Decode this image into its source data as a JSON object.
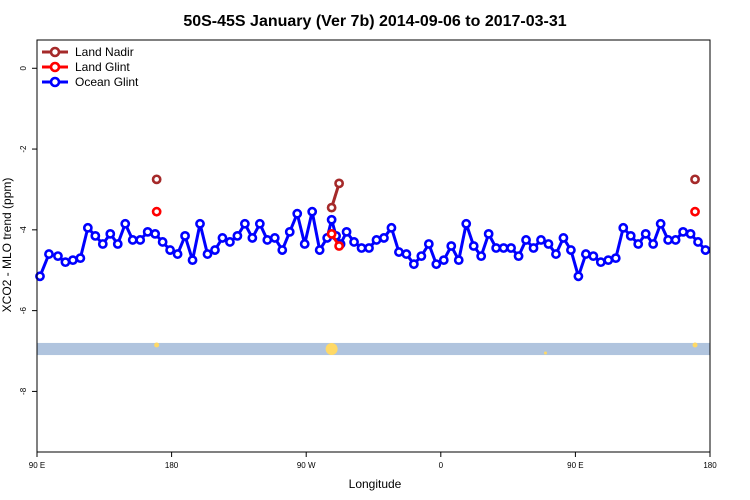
{
  "chart_data": {
    "type": "line",
    "title": "50S-45S January (Ver 7b)   2014-09-06 to 2017-03-31",
    "xlabel": "Longitude",
    "ylabel": "XCO2 - MLO trend (ppm)",
    "x_ticks": [
      {
        "value": 90,
        "label": "90 E"
      },
      {
        "value": 180,
        "label": "180"
      },
      {
        "value": 270,
        "label": "90 W"
      },
      {
        "value": 360,
        "label": "0"
      },
      {
        "value": 450,
        "label": "90 E"
      },
      {
        "value": 540,
        "label": "180"
      }
    ],
    "y_ticks": [
      {
        "value": 0,
        "label": "0"
      },
      {
        "value": -2,
        "label": "-2"
      },
      {
        "value": -4,
        "label": "-4"
      },
      {
        "value": -6,
        "label": "-6"
      },
      {
        "value": -8,
        "label": "-8"
      }
    ],
    "xlim": [
      90,
      540
    ],
    "ylim": [
      -9.5,
      0.7
    ],
    "grid": false,
    "legend_position": "top-left",
    "series": [
      {
        "name": "Land Nadir",
        "color": "#a52a2a",
        "points": [
          [
            170,
            -2.75
          ],
          [
            287,
            -3.45
          ],
          [
            292,
            -2.85
          ],
          [
            530,
            -2.75
          ]
        ]
      },
      {
        "name": "Land Glint",
        "color": "#ff0000",
        "points": [
          [
            170,
            -3.55
          ],
          [
            287,
            -4.1
          ],
          [
            292,
            -4.4
          ],
          [
            530,
            -3.55
          ]
        ]
      },
      {
        "name": "Ocean Glint",
        "color": "#0000ff",
        "points": [
          [
            92,
            -5.15
          ],
          [
            98,
            -4.6
          ],
          [
            104,
            -4.65
          ],
          [
            109,
            -4.8
          ],
          [
            114,
            -4.75
          ],
          [
            119,
            -4.7
          ],
          [
            124,
            -3.95
          ],
          [
            129,
            -4.15
          ],
          [
            134,
            -4.35
          ],
          [
            139,
            -4.1
          ],
          [
            144,
            -4.35
          ],
          [
            149,
            -3.85
          ],
          [
            154,
            -4.25
          ],
          [
            159,
            -4.25
          ],
          [
            164,
            -4.05
          ],
          [
            169,
            -4.1
          ],
          [
            174,
            -4.3
          ],
          [
            179,
            -4.5
          ],
          [
            184,
            -4.6
          ],
          [
            189,
            -4.15
          ],
          [
            194,
            -4.75
          ],
          [
            199,
            -3.85
          ],
          [
            204,
            -4.6
          ],
          [
            209,
            -4.5
          ],
          [
            214,
            -4.2
          ],
          [
            219,
            -4.3
          ],
          [
            224,
            -4.15
          ],
          [
            229,
            -3.85
          ],
          [
            234,
            -4.2
          ],
          [
            239,
            -3.85
          ],
          [
            244,
            -4.25
          ],
          [
            249,
            -4.2
          ],
          [
            254,
            -4.5
          ],
          [
            259,
            -4.05
          ],
          [
            264,
            -3.6
          ],
          [
            269,
            -4.35
          ],
          [
            274,
            -3.55
          ],
          [
            279,
            -4.5
          ],
          [
            284,
            -4.2
          ],
          [
            287,
            -3.75
          ],
          [
            290,
            -4.15
          ],
          [
            293,
            -4.35
          ],
          [
            297,
            -4.05
          ],
          [
            302,
            -4.3
          ],
          [
            307,
            -4.45
          ],
          [
            312,
            -4.45
          ],
          [
            317,
            -4.25
          ],
          [
            322,
            -4.2
          ],
          [
            327,
            -3.95
          ],
          [
            332,
            -4.55
          ],
          [
            337,
            -4.6
          ],
          [
            342,
            -4.85
          ],
          [
            347,
            -4.65
          ],
          [
            352,
            -4.35
          ],
          [
            357,
            -4.85
          ],
          [
            362,
            -4.75
          ],
          [
            367,
            -4.4
          ],
          [
            372,
            -4.75
          ],
          [
            377,
            -3.85
          ],
          [
            382,
            -4.4
          ],
          [
            387,
            -4.65
          ],
          [
            392,
            -4.1
          ],
          [
            397,
            -4.45
          ],
          [
            402,
            -4.45
          ],
          [
            407,
            -4.45
          ],
          [
            412,
            -4.65
          ],
          [
            417,
            -4.25
          ],
          [
            422,
            -4.45
          ],
          [
            427,
            -4.25
          ],
          [
            432,
            -4.35
          ],
          [
            437,
            -4.6
          ],
          [
            442,
            -4.2
          ],
          [
            447,
            -4.5
          ],
          [
            452,
            -5.15
          ],
          [
            457,
            -4.6
          ],
          [
            462,
            -4.65
          ],
          [
            467,
            -4.8
          ],
          [
            472,
            -4.75
          ],
          [
            477,
            -4.7
          ],
          [
            482,
            -3.95
          ],
          [
            487,
            -4.15
          ],
          [
            492,
            -4.35
          ],
          [
            497,
            -4.1
          ],
          [
            502,
            -4.35
          ],
          [
            507,
            -3.85
          ],
          [
            512,
            -4.25
          ],
          [
            517,
            -4.25
          ],
          [
            522,
            -4.05
          ],
          [
            527,
            -4.1
          ],
          [
            532,
            -4.3
          ],
          [
            537,
            -4.5
          ]
        ]
      }
    ],
    "background_band": {
      "y_from": -7.1,
      "y_to": -6.8,
      "color": "#b0c4de"
    },
    "band_markers": {
      "color": "#ffd966",
      "points": [
        {
          "x": 170,
          "y": -6.85,
          "size": "small"
        },
        {
          "x": 287,
          "y": -6.95,
          "size": "large"
        },
        {
          "x": 530,
          "y": -6.85,
          "size": "small"
        },
        {
          "x": 430,
          "y": -7.05,
          "size": "tiny"
        }
      ]
    }
  }
}
